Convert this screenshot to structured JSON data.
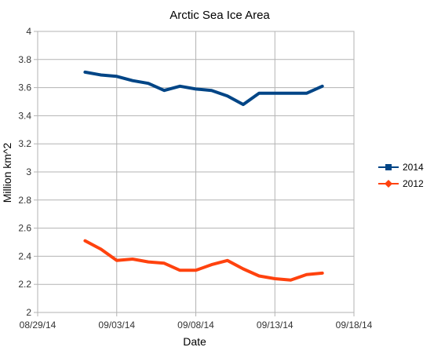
{
  "chart_data": {
    "type": "line",
    "title": "Arctic Sea Ice Area",
    "xlabel": "Date",
    "ylabel": "Million km^2",
    "ylim": [
      2,
      4
    ],
    "yticks": [
      2,
      2.2,
      2.4,
      2.6,
      2.8,
      3,
      3.2,
      3.4,
      3.6,
      3.8,
      4
    ],
    "xlim": [
      "08/29/14",
      "09/18/14"
    ],
    "xtick_labels": [
      "08/29/14",
      "09/03/14",
      "09/08/14",
      "09/13/14",
      "09/18/14"
    ],
    "grid": true,
    "legend_position": "right",
    "series": [
      {
        "name": "2014",
        "color": "#004586",
        "marker": "square",
        "x": [
          "09/01/14",
          "09/02/14",
          "09/03/14",
          "09/04/14",
          "09/05/14",
          "09/06/14",
          "09/07/14",
          "09/08/14",
          "09/09/14",
          "09/10/14",
          "09/11/14",
          "09/12/14",
          "09/13/14",
          "09/14/14",
          "09/15/14",
          "09/16/14"
        ],
        "values": [
          3.71,
          3.69,
          3.68,
          3.65,
          3.63,
          3.58,
          3.61,
          3.59,
          3.58,
          3.54,
          3.48,
          3.56,
          3.56,
          3.56,
          3.56,
          3.61
        ]
      },
      {
        "name": "2012",
        "color": "#ff420e",
        "marker": "diamond",
        "x": [
          "09/01/14",
          "09/02/14",
          "09/03/14",
          "09/04/14",
          "09/05/14",
          "09/06/14",
          "09/07/14",
          "09/08/14",
          "09/09/14",
          "09/10/14",
          "09/11/14",
          "09/12/14",
          "09/13/14",
          "09/14/14",
          "09/15/14",
          "09/16/14"
        ],
        "values": [
          2.51,
          2.45,
          2.37,
          2.38,
          2.36,
          2.35,
          2.3,
          2.3,
          2.34,
          2.37,
          2.31,
          2.26,
          2.24,
          2.23,
          2.27,
          2.28
        ]
      }
    ]
  }
}
